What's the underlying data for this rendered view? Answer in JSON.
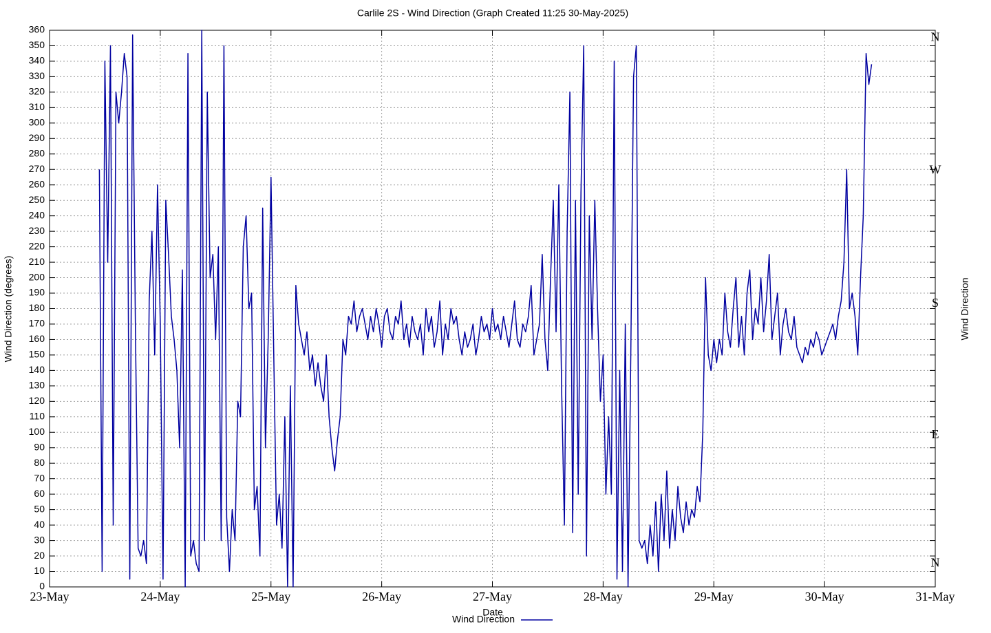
{
  "chart_data": {
    "type": "line",
    "title": "Carlile 2S - Wind Direction (Graph Created 11:25 30-May-2025)",
    "x_label": "Date",
    "y_label": "Wind Direction (degrees)",
    "y2_label": "Wind Direction",
    "xlim": [
      0,
      8
    ],
    "xticks": [
      {
        "value": 0,
        "label": "23-May"
      },
      {
        "value": 1,
        "label": "24-May"
      },
      {
        "value": 2,
        "label": "25-May"
      },
      {
        "value": 3,
        "label": "26-May"
      },
      {
        "value": 4,
        "label": "27-May"
      },
      {
        "value": 5,
        "label": "28-May"
      },
      {
        "value": 6,
        "label": "29-May"
      },
      {
        "value": 7,
        "label": "30-May"
      },
      {
        "value": 8,
        "label": "31-May"
      }
    ],
    "ylim": [
      0,
      360
    ],
    "yticks": [
      0,
      10,
      20,
      30,
      40,
      50,
      60,
      70,
      80,
      90,
      100,
      110,
      120,
      130,
      140,
      150,
      160,
      170,
      180,
      190,
      200,
      210,
      220,
      230,
      240,
      250,
      260,
      270,
      280,
      290,
      300,
      310,
      320,
      330,
      340,
      350,
      360
    ],
    "y2lim": [
      0,
      360
    ],
    "y2ticks": [
      {
        "value": 355,
        "label": "N"
      },
      {
        "value": 269,
        "label": "W"
      },
      {
        "value": 183,
        "label": "S"
      },
      {
        "value": 98,
        "label": "E"
      },
      {
        "value": 15,
        "label": "N"
      }
    ],
    "grid": true,
    "legend": "bottom",
    "x": [
      0.45,
      0.475,
      0.5,
      0.525,
      0.55,
      0.575,
      0.6,
      0.625,
      0.65,
      0.675,
      0.7,
      0.725,
      0.75,
      0.775,
      0.8,
      0.825,
      0.85,
      0.875,
      0.9,
      0.925,
      0.95,
      0.975,
      1.0,
      1.025,
      1.05,
      1.075,
      1.1,
      1.125,
      1.15,
      1.175,
      1.2,
      1.225,
      1.25,
      1.275,
      1.3,
      1.325,
      1.35,
      1.375,
      1.4,
      1.425,
      1.45,
      1.475,
      1.5,
      1.525,
      1.55,
      1.575,
      1.6,
      1.625,
      1.65,
      1.675,
      1.7,
      1.725,
      1.75,
      1.775,
      1.8,
      1.825,
      1.85,
      1.875,
      1.9,
      1.925,
      1.95,
      1.975,
      2.0,
      2.025,
      2.05,
      2.075,
      2.1,
      2.125,
      2.15,
      2.175,
      2.2,
      2.225,
      2.25,
      2.275,
      2.3,
      2.325,
      2.35,
      2.375,
      2.4,
      2.425,
      2.45,
      2.475,
      2.5,
      2.525,
      2.55,
      2.575,
      2.6,
      2.625,
      2.65,
      2.675,
      2.7,
      2.725,
      2.75,
      2.775,
      2.8,
      2.825,
      2.85,
      2.875,
      2.9,
      2.925,
      2.95,
      2.975,
      3.0,
      3.025,
      3.05,
      3.075,
      3.1,
      3.125,
      3.15,
      3.175,
      3.2,
      3.225,
      3.25,
      3.275,
      3.3,
      3.325,
      3.35,
      3.375,
      3.4,
      3.425,
      3.45,
      3.475,
      3.5,
      3.525,
      3.55,
      3.575,
      3.6,
      3.625,
      3.65,
      3.675,
      3.7,
      3.725,
      3.75,
      3.775,
      3.8,
      3.825,
      3.85,
      3.875,
      3.9,
      3.925,
      3.95,
      3.975,
      4.0,
      4.025,
      4.05,
      4.075,
      4.1,
      4.125,
      4.15,
      4.175,
      4.2,
      4.225,
      4.25,
      4.275,
      4.3,
      4.325,
      4.35,
      4.375,
      4.4,
      4.425,
      4.45,
      4.475,
      4.5,
      4.525,
      4.55,
      4.575,
      4.6,
      4.625,
      4.65,
      4.675,
      4.7,
      4.725,
      4.75,
      4.775,
      4.8,
      4.825,
      4.85,
      4.875,
      4.9,
      4.925,
      4.95,
      4.975,
      5.0,
      5.025,
      5.05,
      5.075,
      5.1,
      5.125,
      5.15,
      5.175,
      5.2,
      5.225,
      5.25,
      5.275,
      5.3,
      5.325,
      5.35,
      5.375,
      5.4,
      5.425,
      5.45,
      5.475,
      5.5,
      5.525,
      5.55,
      5.575,
      5.6,
      5.625,
      5.65,
      5.675,
      5.7,
      5.725,
      5.75,
      5.775,
      5.8,
      5.825,
      5.85,
      5.875,
      5.9,
      5.925,
      5.95,
      5.975,
      6.0,
      6.025,
      6.05,
      6.075,
      6.1,
      6.125,
      6.15,
      6.175,
      6.2,
      6.225,
      6.25,
      6.275,
      6.3,
      6.325,
      6.35,
      6.375,
      6.4,
      6.425,
      6.45,
      6.475,
      6.5,
      6.525,
      6.55,
      6.575,
      6.6,
      6.625,
      6.65,
      6.675,
      6.7,
      6.725,
      6.75,
      6.775,
      6.8,
      6.825,
      6.85,
      6.875,
      6.9,
      6.925,
      6.95,
      6.975,
      7.0,
      7.025,
      7.05,
      7.075,
      7.1,
      7.125,
      7.15,
      7.175,
      7.2,
      7.225,
      7.25,
      7.275,
      7.3,
      7.325,
      7.35,
      7.375,
      7.4,
      7.425
    ],
    "series": [
      {
        "name": "Wind Direction",
        "color": "#0000a0",
        "values": [
          270,
          10,
          340,
          210,
          350,
          40,
          320,
          300,
          320,
          345,
          330,
          5,
          357,
          170,
          25,
          20,
          30,
          15,
          185,
          230,
          150,
          260,
          170,
          5,
          250,
          215,
          175,
          160,
          140,
          90,
          205,
          0,
          345,
          20,
          30,
          15,
          10,
          360,
          30,
          320,
          200,
          215,
          160,
          220,
          30,
          350,
          45,
          10,
          50,
          30,
          120,
          110,
          220,
          240,
          180,
          190,
          50,
          65,
          20,
          245,
          90,
          160,
          265,
          150,
          40,
          60,
          25,
          110,
          0,
          130,
          0,
          195,
          170,
          160,
          150,
          165,
          140,
          150,
          130,
          145,
          130,
          120,
          150,
          110,
          90,
          75,
          95,
          110,
          160,
          150,
          175,
          170,
          185,
          165,
          175,
          180,
          170,
          160,
          175,
          165,
          180,
          170,
          155,
          175,
          180,
          165,
          160,
          175,
          170,
          185,
          160,
          170,
          155,
          175,
          165,
          160,
          170,
          150,
          180,
          165,
          175,
          155,
          165,
          185,
          150,
          170,
          160,
          180,
          170,
          175,
          160,
          150,
          165,
          155,
          160,
          170,
          150,
          160,
          175,
          165,
          170,
          160,
          180,
          165,
          170,
          160,
          175,
          165,
          155,
          170,
          185,
          160,
          155,
          170,
          165,
          175,
          195,
          150,
          160,
          170,
          215,
          160,
          140,
          200,
          250,
          165,
          260,
          130,
          40,
          230,
          320,
          35,
          250,
          60,
          255,
          350,
          20,
          240,
          160,
          250,
          180,
          120,
          150,
          60,
          110,
          60,
          340,
          5,
          140,
          10,
          170,
          0,
          150,
          330,
          350,
          30,
          25,
          30,
          15,
          40,
          20,
          55,
          10,
          60,
          30,
          75,
          25,
          50,
          30,
          65,
          45,
          35,
          55,
          40,
          50,
          45,
          65,
          55,
          100,
          200,
          150,
          140,
          160,
          145,
          160,
          150,
          190,
          165,
          155,
          180,
          200,
          155,
          175,
          150,
          190,
          205,
          160,
          180,
          170,
          200,
          165,
          185,
          215,
          160,
          175,
          190,
          150,
          170,
          180,
          165,
          160,
          175,
          155,
          150,
          145,
          155,
          150,
          160,
          155,
          165,
          160,
          150,
          155,
          160,
          165,
          170,
          160,
          175,
          185,
          210,
          270,
          180,
          190,
          175,
          150,
          200,
          240,
          345,
          325,
          338
        ]
      }
    ]
  }
}
